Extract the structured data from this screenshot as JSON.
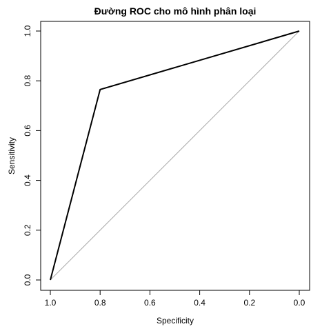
{
  "chart_data": {
    "type": "line",
    "title": "Đường ROC cho mô hình phân loại",
    "xlabel": "Specificity",
    "ylabel": "Sensitivity",
    "xlim": [
      1.0,
      0.0
    ],
    "ylim": [
      0.0,
      1.0
    ],
    "x_reversed": true,
    "x_ticks": [
      "1.0",
      "0.8",
      "0.6",
      "0.4",
      "0.2",
      "0.0"
    ],
    "y_ticks": [
      "0.0",
      "0.2",
      "0.4",
      "0.6",
      "0.8",
      "1.0"
    ],
    "grid": false,
    "series": [
      {
        "points": [
          {
            "x": 1.0,
            "y": 0.0
          },
          {
            "x": 0.8,
            "y": 0.765
          },
          {
            "x": 0.0,
            "y": 1.0
          }
        ],
        "color": "#000000"
      }
    ],
    "reference_line": {
      "from": {
        "x": 1.0,
        "y": 0.0
      },
      "to": {
        "x": 0.0,
        "y": 1.0
      },
      "color": "#aaaaaa"
    }
  }
}
